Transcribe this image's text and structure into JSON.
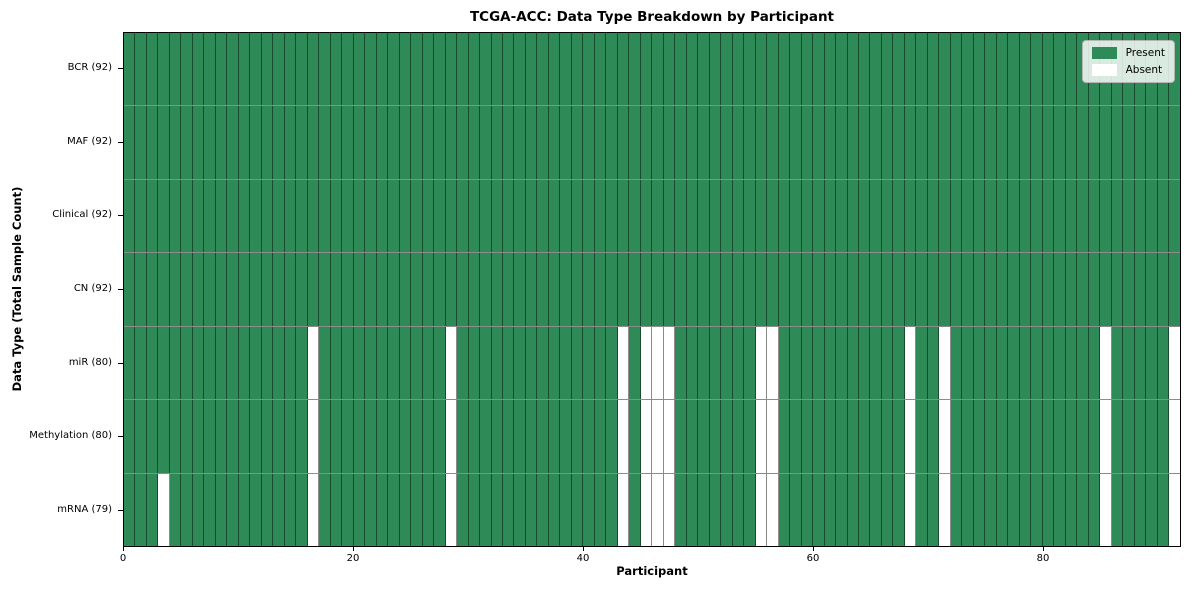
{
  "chart_data": {
    "type": "heatmap",
    "title": "TCGA-ACC: Data Type Breakdown by Participant",
    "xlabel": "Participant",
    "ylabel": "Data Type (Total Sample Count)",
    "x_ticks": [
      0,
      20,
      40,
      60,
      80
    ],
    "x_range": [
      0,
      92
    ],
    "n_participants": 92,
    "grid": true,
    "rows": [
      {
        "label": "BCR (92)",
        "data_type": "BCR",
        "present_count": 92,
        "absent_participants": []
      },
      {
        "label": "MAF (92)",
        "data_type": "MAF",
        "present_count": 92,
        "absent_participants": []
      },
      {
        "label": "Clinical (92)",
        "data_type": "Clinical",
        "present_count": 92,
        "absent_participants": []
      },
      {
        "label": "CN (92)",
        "data_type": "CN",
        "present_count": 92,
        "absent_participants": []
      },
      {
        "label": "miR (80)",
        "data_type": "miR",
        "present_count": 80,
        "absent_participants": [
          16,
          28,
          43,
          45,
          46,
          47,
          55,
          56,
          68,
          71,
          85,
          91
        ]
      },
      {
        "label": "Methylation (80)",
        "data_type": "Methylation",
        "present_count": 80,
        "absent_participants": [
          16,
          28,
          43,
          45,
          46,
          47,
          55,
          56,
          68,
          71,
          85,
          91
        ]
      },
      {
        "label": "mRNA (79)",
        "data_type": "mRNA",
        "present_count": 79,
        "absent_participants": [
          3,
          16,
          28,
          43,
          45,
          46,
          47,
          55,
          56,
          68,
          71,
          85,
          91
        ]
      }
    ],
    "legend": {
      "position": "upper right",
      "entries": [
        {
          "label": "Present",
          "color": "#2e8b57"
        },
        {
          "label": "Absent",
          "color": "#ffffff"
        }
      ]
    },
    "colors": {
      "present": "#2e8b57",
      "absent": "#ffffff",
      "gridline": "#000000",
      "spine": "#000000"
    }
  }
}
